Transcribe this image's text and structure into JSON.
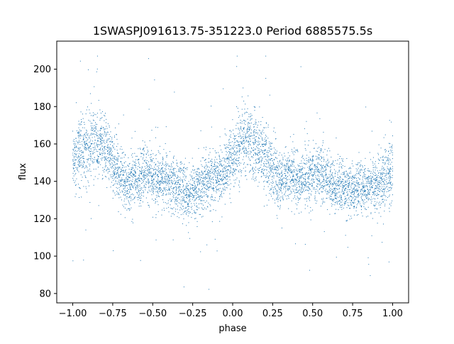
{
  "chart_data": {
    "type": "scatter",
    "title": "1SWASPJ091613.75-351223.0 Period 6885575.5s",
    "xlabel": "phase",
    "ylabel": "flux",
    "xlim": [
      -1.1,
      1.1
    ],
    "ylim": [
      75,
      215
    ],
    "xticks": [
      -1.0,
      -0.75,
      -0.5,
      -0.25,
      0.0,
      0.25,
      0.5,
      0.75,
      1.0
    ],
    "xtick_labels": [
      "−1.00",
      "−0.75",
      "−0.50",
      "−0.25",
      "0.00",
      "0.25",
      "0.50",
      "0.75",
      "1.00"
    ],
    "yticks": [
      80,
      100,
      120,
      140,
      160,
      180,
      200
    ],
    "ytick_labels": [
      "80",
      "100",
      "120",
      "140",
      "160",
      "180",
      "200"
    ],
    "grid": false,
    "point_color": "#1f77b4",
    "series": [
      {
        "x": [
          -1.0,
          -0.98,
          -0.96,
          -0.94,
          -0.92,
          -0.9,
          -0.88,
          -0.86,
          -0.84,
          -0.82,
          -0.8,
          -0.78,
          -0.76,
          -0.74,
          -0.72,
          -0.7,
          -0.68,
          -0.66,
          -0.64,
          -0.62,
          -0.6,
          -0.58,
          -0.56,
          -0.54,
          -0.52,
          -0.5,
          -0.48,
          -0.46,
          -0.44,
          -0.42,
          -0.4,
          -0.38,
          -0.36,
          -0.34,
          -0.32,
          -0.3,
          -0.28,
          -0.26,
          -0.24,
          -0.22,
          -0.2,
          -0.18,
          -0.16,
          -0.14,
          -0.12,
          -0.1,
          -0.08,
          -0.06,
          -0.04,
          -0.02,
          0.0,
          0.02,
          0.04,
          0.06,
          0.08,
          0.1,
          0.12,
          0.14,
          0.16,
          0.18,
          0.2,
          0.22,
          0.24,
          0.26,
          0.28,
          0.3,
          0.32,
          0.34,
          0.36,
          0.38,
          0.4,
          0.42,
          0.44,
          0.46,
          0.48,
          0.5,
          0.52,
          0.54,
          0.56,
          0.58,
          0.6,
          0.62,
          0.64,
          0.66,
          0.68,
          0.7,
          0.72,
          0.74,
          0.76,
          0.78,
          0.8,
          0.82,
          0.84,
          0.86,
          0.88,
          0.9,
          0.92,
          0.94,
          0.96,
          0.98,
          1.0
        ],
        "y": [
          150,
          152,
          157,
          158,
          156,
          160,
          158,
          160,
          162,
          160,
          158,
          157,
          152,
          148,
          146,
          144,
          140,
          137,
          139,
          141,
          142,
          143,
          144,
          145,
          143,
          142,
          141,
          140,
          142,
          141,
          139,
          138,
          138,
          137,
          137,
          135,
          133,
          134,
          135,
          136,
          137,
          138,
          139,
          141,
          142,
          143,
          144,
          145,
          147,
          150,
          152,
          155,
          158,
          160,
          161,
          162,
          160,
          158,
          157,
          156,
          153,
          150,
          147,
          145,
          143,
          141,
          142,
          143,
          143,
          143,
          140,
          140,
          141,
          142,
          143,
          144,
          144,
          145,
          144,
          143,
          141,
          139,
          138,
          137,
          138,
          137,
          135,
          134,
          134,
          135,
          136,
          137,
          138,
          138,
          138,
          139,
          140,
          141,
          143,
          144,
          146
        ],
        "spread": [
          8,
          9,
          10,
          9,
          9,
          9,
          9,
          9,
          9,
          9,
          8,
          8,
          8,
          8,
          7,
          7,
          7,
          7,
          7,
          7,
          7,
          7,
          7,
          7,
          7,
          7,
          7,
          7,
          7,
          7,
          7,
          7,
          7,
          7,
          7,
          7,
          7,
          7,
          7,
          7,
          7,
          7,
          7,
          7,
          7,
          7,
          7,
          8,
          8,
          8,
          8,
          8,
          9,
          9,
          9,
          9,
          9,
          9,
          9,
          9,
          8,
          8,
          8,
          8,
          8,
          7,
          7,
          7,
          7,
          7,
          7,
          7,
          7,
          7,
          7,
          7,
          7,
          7,
          7,
          7,
          7,
          7,
          7,
          7,
          7,
          7,
          7,
          7,
          7,
          7,
          7,
          7,
          7,
          7,
          7,
          8,
          8,
          8,
          8,
          8,
          8
        ]
      }
    ]
  }
}
